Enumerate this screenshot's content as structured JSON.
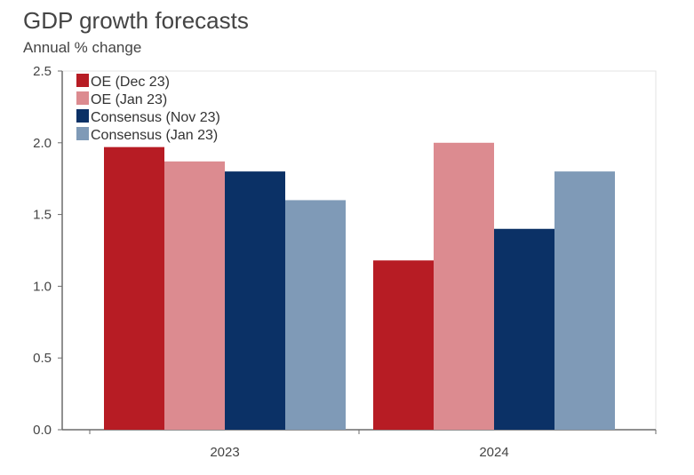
{
  "header": {
    "title": "GDP growth forecasts",
    "subtitle": "Annual % change"
  },
  "colors": {
    "oe_dec23": "#B71C24",
    "oe_jan23": "#DC8B90",
    "consensus_nov23": "#0B3166",
    "consensus_jan23": "#7F9AB7",
    "axis": "#6b6b6b"
  },
  "chart_data": {
    "type": "bar",
    "categories": [
      "2023",
      "2024"
    ],
    "series": [
      {
        "name": "OE (Dec 23)",
        "values": [
          1.97,
          1.18
        ]
      },
      {
        "name": "OE (Jan 23)",
        "values": [
          1.87,
          2.0
        ]
      },
      {
        "name": "Consensus (Nov 23)",
        "values": [
          1.8,
          1.4
        ]
      },
      {
        "name": "Consensus (Jan 23)",
        "values": [
          1.6,
          1.8
        ]
      }
    ],
    "title": "GDP growth forecasts",
    "subtitle": "Annual % change",
    "xlabel": "",
    "ylabel": "",
    "ylim": [
      0,
      2.5
    ],
    "yticks": [
      "0.0",
      "0.5",
      "1.0",
      "1.5",
      "2.0",
      "2.5"
    ],
    "grid": false,
    "legend_position": "top-left"
  }
}
